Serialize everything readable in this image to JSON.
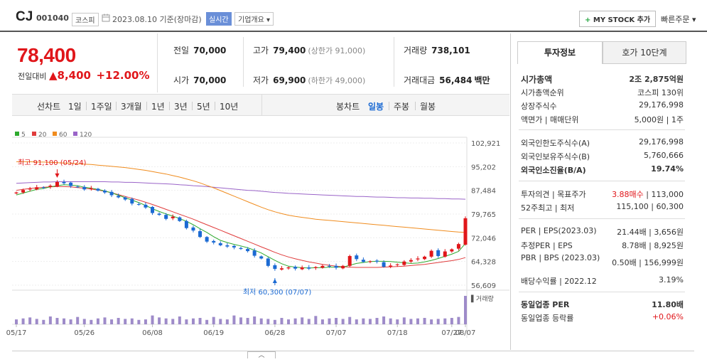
{
  "header": {
    "company": "CJ",
    "code": "001040",
    "market": "코스피",
    "date": "2023.08.10 기준(장마감)",
    "live_label": "실시간",
    "overview_label": "기업개요",
    "mystock_label": "MY STOCK 추가",
    "quick_order_label": "빠른주문"
  },
  "price": {
    "current": "78,400",
    "change_label": "전일대비",
    "change_amount": "8,400",
    "change_pct": "+12.00%"
  },
  "quote": {
    "prev_close_label": "전일",
    "prev_close": "70,000",
    "high_label": "고가",
    "high": "79,400",
    "upper_limit": "(상한가 91,000)",
    "volume_label": "거래량",
    "volume": "738,101",
    "open_label": "시가",
    "open": "70,000",
    "low_label": "저가",
    "low": "69,900",
    "lower_limit": "(하한가 49,000)",
    "amount_label": "거래대금",
    "amount": "56,484",
    "amount_unit": "백만"
  },
  "period_tabs": [
    "선차트",
    "1일",
    "1주일",
    "3개월",
    "1년",
    "3년",
    "5년",
    "10년"
  ],
  "candle_tabs": [
    "봉차트",
    "일봉",
    "주봉",
    "월봉"
  ],
  "legend": [
    {
      "label": "5",
      "color": "#2eaa2e"
    },
    {
      "label": "20",
      "color": "#e03c3c"
    },
    {
      "label": "60",
      "color": "#f08c1e"
    },
    {
      "label": "120",
      "color": "#9a64c8"
    }
  ],
  "chart_data": {
    "type": "candlestick",
    "y_ticks": [
      "102,921",
      "95,202",
      "87,484",
      "79,765",
      "72,046",
      "64,328",
      "56,609"
    ],
    "ylim": [
      56609,
      102921
    ],
    "x_ticks": [
      "05/17",
      "05/26",
      "06/08",
      "06/19",
      "06/28",
      "07/07",
      "07/18",
      "07/27",
      "08/07"
    ],
    "max_annotation": "최고 91,100 (05/24)",
    "min_annotation": "최저 60,300 (07/07)",
    "volume_label": "거래량",
    "closes": [
      86800,
      87600,
      88000,
      88500,
      88400,
      89000,
      90200,
      89800,
      88900,
      88600,
      87800,
      88200,
      87400,
      86800,
      85900,
      85200,
      84500,
      83200,
      82800,
      81900,
      80100,
      79500,
      78200,
      78900,
      77500,
      75200,
      74400,
      72300,
      70800,
      70500,
      69600,
      69200,
      68900,
      68400,
      67700,
      66200,
      65300,
      62900,
      61900,
      62100,
      62400,
      62000,
      62400,
      62000,
      62500,
      62900,
      62700,
      62300,
      62900,
      66100,
      65100,
      64200,
      64400,
      64300,
      62600,
      63000,
      63400,
      64300,
      64800,
      65300,
      65900,
      67800,
      66100,
      67600,
      68300,
      70000,
      78400
    ],
    "ma5": [
      86000,
      86600,
      87200,
      87800,
      88100,
      88600,
      89000,
      89300,
      89200,
      89000,
      88500,
      88200,
      87800,
      87300,
      86700,
      85900,
      85100,
      84300,
      83500,
      82600,
      81500,
      80600,
      79800,
      79100,
      78300,
      77400,
      76300,
      75000,
      73800,
      72400,
      71200,
      70500,
      69900,
      69400,
      68800,
      68000,
      67100,
      65900,
      64700,
      63600,
      62800,
      62500,
      62300,
      62200,
      62300,
      62300,
      62500,
      62500,
      62500,
      63100,
      63700,
      64000,
      64300,
      64400,
      64400,
      64300,
      64100,
      63900,
      63700,
      63800,
      64200,
      64700,
      65300,
      66000,
      66700,
      67600,
      70200
    ],
    "ma20": [
      87500,
      87800,
      88100,
      88300,
      88500,
      88600,
      88700,
      88700,
      88600,
      88400,
      88200,
      87900,
      87600,
      87200,
      86700,
      86100,
      85500,
      84900,
      84300,
      83600,
      82900,
      82100,
      81300,
      80500,
      79700,
      78900,
      78100,
      77200,
      76300,
      75400,
      74500,
      73600,
      72700,
      71800,
      70900,
      70000,
      69100,
      68200,
      67300,
      66500,
      65800,
      65200,
      64700,
      64200,
      63800,
      63400,
      63100,
      62800,
      62600,
      62500,
      62400,
      62400,
      62400,
      62400,
      62500,
      62600,
      62700,
      62800,
      63000,
      63200,
      63400,
      63700,
      64000,
      64300,
      64600,
      65000,
      65600
    ],
    "ma60": [
      96800,
      96800,
      96800,
      96700,
      96700,
      96600,
      96500,
      96400,
      96300,
      96200,
      96000,
      95900,
      95700,
      95500,
      95300,
      95100,
      94900,
      94600,
      94300,
      94000,
      93600,
      93200,
      92800,
      92300,
      91800,
      91200,
      90600,
      89900,
      89100,
      88300,
      87400,
      86500,
      85600,
      84700,
      83800,
      82900,
      82000,
      81200,
      80500,
      79900,
      79400,
      79000,
      78700,
      78400,
      78100,
      77900,
      77700,
      77500,
      77300,
      77100,
      76900,
      76700,
      76500,
      76300,
      76100,
      75900,
      75700,
      75500,
      75300,
      75100,
      74900,
      74700,
      74500,
      74300,
      74100,
      73900,
      73800
    ],
    "ma120": [
      89800,
      89900,
      90000,
      90100,
      90200,
      90200,
      90300,
      90300,
      90300,
      90300,
      90300,
      90300,
      90300,
      90300,
      90200,
      90200,
      90100,
      90100,
      90000,
      89900,
      89800,
      89700,
      89600,
      89500,
      89300,
      89200,
      89000,
      88900,
      88700,
      88500,
      88300,
      88100,
      87900,
      87700,
      87500,
      87400,
      87200,
      87000,
      86800,
      86700,
      86500,
      86400,
      86300,
      86200,
      86100,
      86000,
      85900,
      85800,
      85700,
      85600,
      85500,
      85500,
      85400,
      85300,
      85300,
      85200,
      85100,
      85100,
      85000,
      85000,
      84900,
      84900,
      84800,
      84800,
      84700,
      84700,
      84600
    ],
    "volumes": [
      10,
      12,
      14,
      11,
      9,
      16,
      13,
      12,
      10,
      15,
      11,
      9,
      12,
      14,
      10,
      13,
      11,
      12,
      9,
      10,
      18,
      14,
      12,
      11,
      16,
      10,
      12,
      13,
      9,
      15,
      11,
      10,
      18,
      14,
      13,
      16,
      12,
      11,
      9,
      13,
      10,
      12,
      14,
      11,
      17,
      10,
      12,
      13,
      11,
      15,
      10,
      12,
      11,
      13,
      16,
      12,
      10,
      14,
      11,
      12,
      13,
      10,
      11,
      12,
      13,
      15,
      58
    ]
  },
  "right_panel": {
    "tab_invest": "투자정보",
    "tab_quote": "호가 10단계",
    "market_cap_label": "시가총액",
    "market_cap": "2조 2,875억원",
    "cap_rank_label": "시가총액순위",
    "cap_rank": "코스피 130위",
    "shares_label": "상장주식수",
    "shares": "29,176,998",
    "par_label": "액면가 | 매매단위",
    "par": "5,000원 | 1주",
    "foreign_limit_label": "외국인한도주식수(A)",
    "foreign_limit": "29,176,998",
    "foreign_hold_label": "외국인보유주식수(B)",
    "foreign_hold": "5,760,666",
    "foreign_ratio_label": "외국인소진율(B/A)",
    "foreign_ratio": "19.74%",
    "opinion_label": "투자의견 | 목표주가",
    "opinion": "3.88매수",
    "target": "113,000",
    "week52_label": "52주최고 | 최저",
    "week52": "115,100 | 60,300",
    "per_label": "PER | EPS(2023.03)",
    "per": "21.44배 | 3,656원",
    "est_per_label": "추정PER | EPS",
    "est_per": "8.78배 | 8,925원",
    "pbr_label": "PBR | BPS (2023.03)",
    "pbr": "0.50배 | 156,999원",
    "div_label": "배당수익률 | 2022.12",
    "div": "3.19%",
    "peer_per_label": "동일업종 PER",
    "peer_per": "11.80배",
    "peer_rate_label": "동일업종 등락률",
    "peer_rate": "+0.06%"
  }
}
